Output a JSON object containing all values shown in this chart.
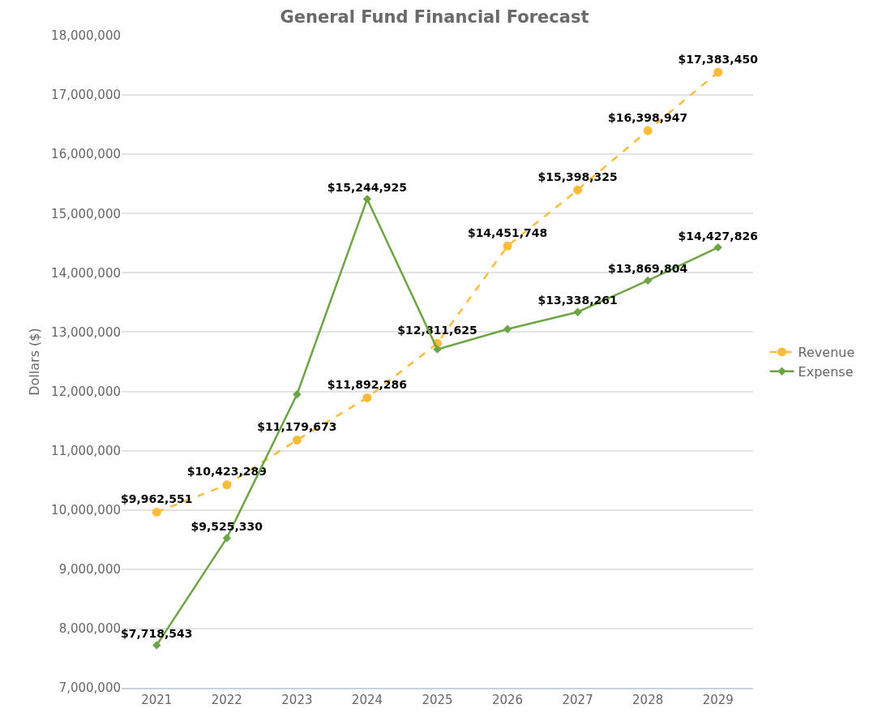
{
  "chart_data": {
    "type": "line",
    "title": "General Fund Financial Forecast",
    "ylabel": "Dollars ($)",
    "categories": [
      "2021",
      "2022",
      "2023",
      "2024",
      "2025",
      "2026",
      "2027",
      "2028",
      "2029"
    ],
    "series": [
      {
        "name": "Revenue",
        "color": "#fbbc3b",
        "marker": "circle",
        "line_style": "dashed",
        "values": [
          9962551,
          10423289,
          11179673,
          11892286,
          12811625,
          14451748,
          15398325,
          16398947,
          17383450
        ],
        "value_labels": [
          "$9,962,551",
          "$10,423,289",
          "$11,179,673",
          "$11,892,286",
          "$12,811,625",
          "$14,451,748",
          "$15,398,325",
          "$16,398,947",
          "$17,383,450"
        ]
      },
      {
        "name": "Expense",
        "color": "#6ea544",
        "marker": "diamond",
        "line_style": "solid",
        "values": [
          7718543,
          9525330,
          11950000,
          15244925,
          12710000,
          13050000,
          13338261,
          13869804,
          14427826
        ],
        "value_labels": [
          "$7,718,543",
          "$9,525,330",
          null,
          "$15,244,925",
          null,
          null,
          "$13,338,261",
          "$13,869,804",
          "$14,427,826"
        ]
      }
    ],
    "ylim": [
      7000000,
      18000000
    ],
    "yticks": [
      {
        "value": 7000000,
        "label": "7,000,000"
      },
      {
        "value": 8000000,
        "label": "8,000,000"
      },
      {
        "value": 9000000,
        "label": "9,000,000"
      },
      {
        "value": 10000000,
        "label": "10,000,000"
      },
      {
        "value": 11000000,
        "label": "11,000,000"
      },
      {
        "value": 12000000,
        "label": "12,000,000"
      },
      {
        "value": 13000000,
        "label": "13,000,000"
      },
      {
        "value": 14000000,
        "label": "14,000,000"
      },
      {
        "value": 15000000,
        "label": "15,000,000"
      },
      {
        "value": 16000000,
        "label": "16,000,000"
      },
      {
        "value": 17000000,
        "label": "17,000,000"
      },
      {
        "value": 18000000,
        "label": "18,000,000"
      }
    ],
    "grid": "y",
    "legend": "right"
  }
}
